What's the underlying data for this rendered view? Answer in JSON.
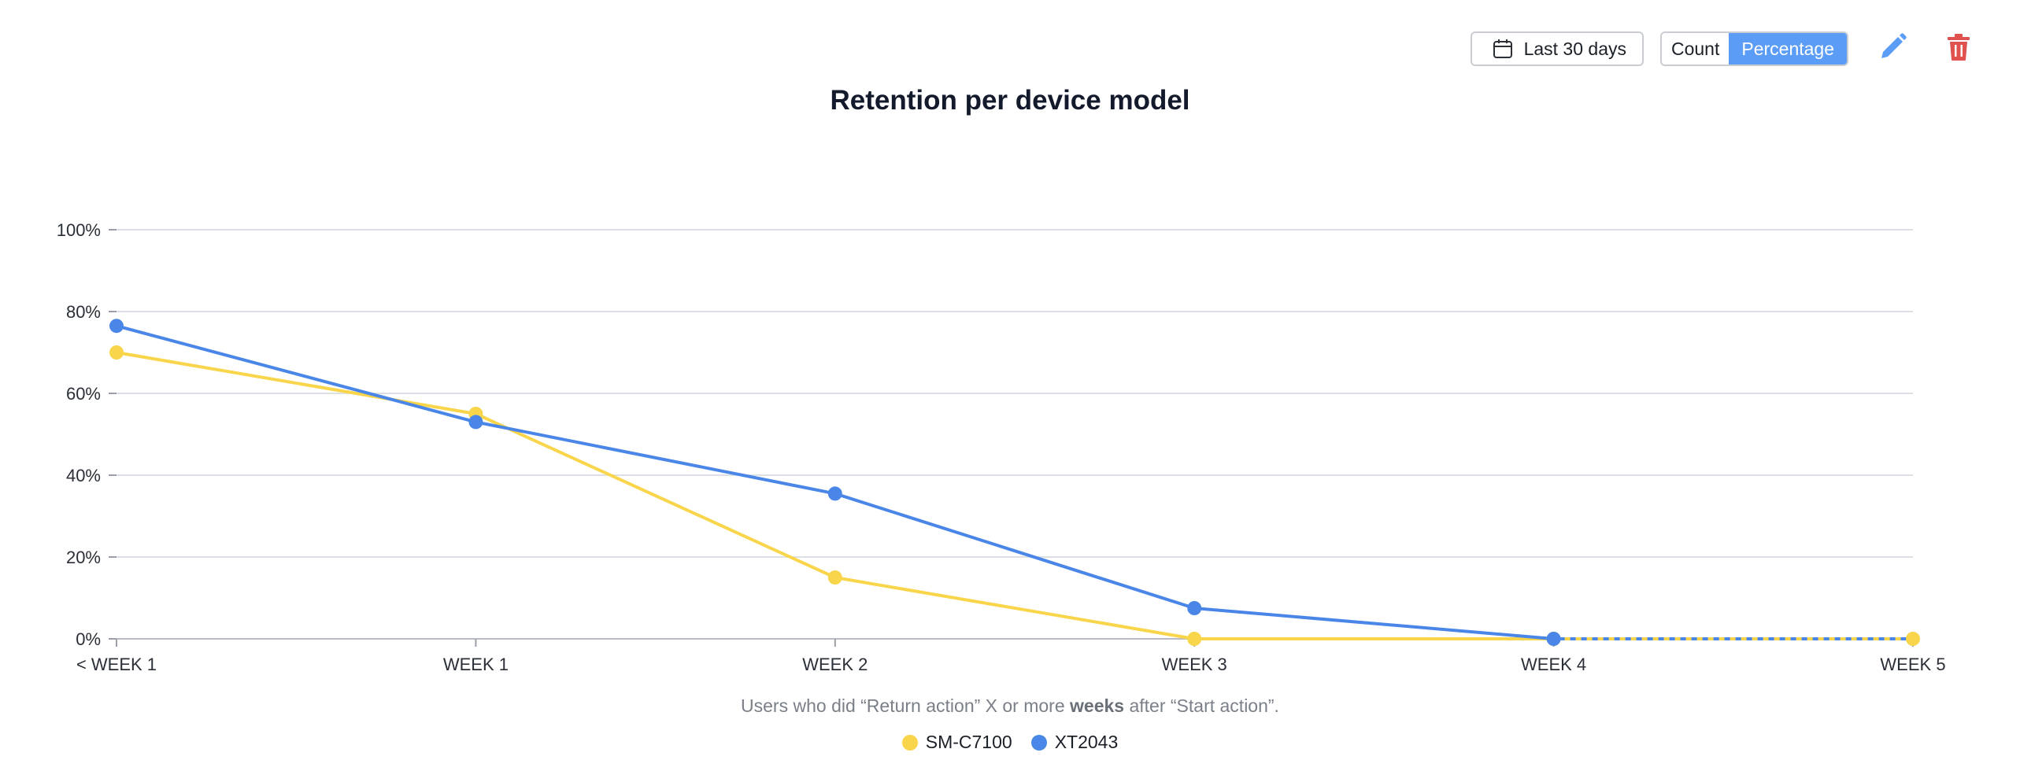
{
  "toolbar": {
    "date_range_label": "Last 30 days",
    "mode_options": [
      "Count",
      "Percentage"
    ],
    "active_mode": "Percentage",
    "edit_icon": "pencil-icon",
    "delete_icon": "trash-icon",
    "calendar_icon": "calendar-icon"
  },
  "colors": {
    "accent": "#5b9df6",
    "delete": "#e0524f",
    "series_1": "#f8d54a",
    "series_2": "#4a86e8"
  },
  "caption": {
    "before_1": "Users who did “Return action” X or more ",
    "strong": "weeks",
    "after": " after “Start action”."
  },
  "chart_data": {
    "type": "line",
    "title": "Retention per device model",
    "categories": [
      "< WEEK 1",
      "WEEK 1",
      "WEEK 2",
      "WEEK 3",
      "WEEK 4",
      "WEEK 5"
    ],
    "series": [
      {
        "name": "SM-C7100",
        "values": [
          70,
          55,
          15,
          0,
          0,
          0
        ],
        "color": "#f8d54a"
      },
      {
        "name": "XT2043",
        "values": [
          76.5,
          53,
          35.5,
          7.5,
          0,
          0
        ],
        "color": "#4a86e8"
      }
    ],
    "ylim": [
      0,
      100
    ],
    "yticks": [
      0,
      20,
      40,
      60,
      80,
      100
    ],
    "ytick_labels": [
      "0%",
      "20%",
      "40%",
      "60%",
      "80%",
      "100%"
    ],
    "xlabel": "",
    "ylabel": "",
    "grid": true,
    "legend_position": "bottom-center"
  }
}
